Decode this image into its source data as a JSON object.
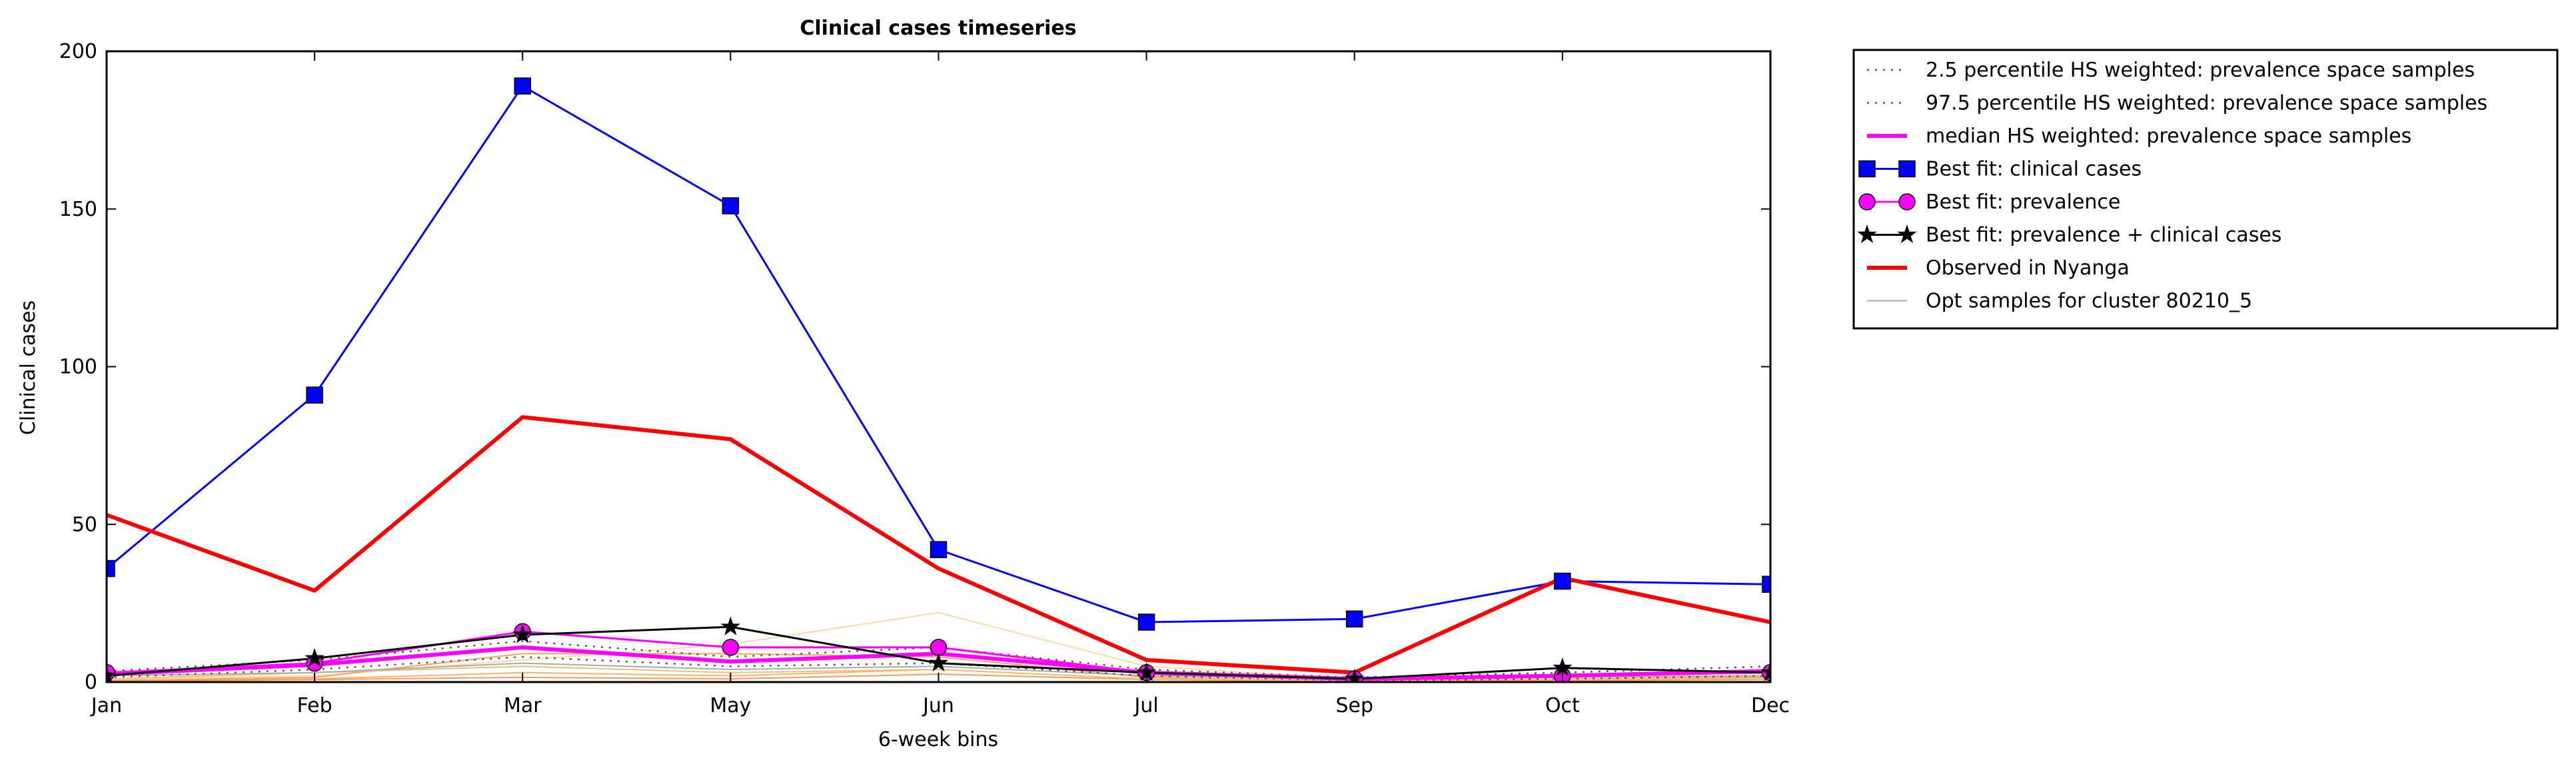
{
  "chart_data": {
    "type": "line",
    "title": "Clinical cases timeseries",
    "xlabel": "6-week bins",
    "ylabel": "Clinical cases",
    "categories": [
      "Jan",
      "Feb",
      "Mar",
      "May",
      "Jun",
      "Jul",
      "Sep",
      "Oct",
      "Dec"
    ],
    "yticks": [
      0,
      50,
      100,
      150,
      200
    ],
    "ylim": [
      0,
      200
    ],
    "grid": false,
    "legend_position": "outside-right-top",
    "series": [
      {
        "name": "2.5 percentile HS weighted: prevalence space samples",
        "style": "dotted",
        "color": "#555555",
        "marker": "none",
        "values": [
          1.5,
          4,
          8,
          5,
          6,
          2,
          0.5,
          1,
          2
        ]
      },
      {
        "name": "97.5 percentile HS weighted: prevalence space samples",
        "style": "dotted",
        "color": "#555555",
        "marker": "none",
        "values": [
          3.5,
          7,
          13,
          8,
          11,
          4,
          1.5,
          3,
          5
        ]
      },
      {
        "name": "median HS weighted: prevalence space samples",
        "style": "solid",
        "color": "#ff00ff",
        "marker": "none",
        "values": [
          2.5,
          5.5,
          11,
          6.5,
          9,
          3,
          1,
          2,
          3.5
        ]
      },
      {
        "name": "Best fit: clinical cases",
        "style": "solid",
        "color": "#0000ff",
        "marker": "square",
        "values": [
          36,
          91,
          189,
          151,
          42,
          19,
          20,
          32,
          31
        ]
      },
      {
        "name": "Best fit: prevalence",
        "style": "solid",
        "color": "#ff00ff",
        "marker": "circle",
        "values": [
          3,
          6,
          16,
          11,
          11,
          3,
          1,
          2,
          3
        ]
      },
      {
        "name": "Best fit: prevalence + clinical cases",
        "style": "solid",
        "color": "#000000",
        "marker": "star",
        "values": [
          2,
          7.5,
          15,
          17.5,
          6,
          3,
          1,
          4.5,
          3
        ]
      },
      {
        "name": "Observed in Nyanga",
        "style": "solid",
        "color": "#ff0000",
        "marker": "none",
        "values": [
          53,
          29,
          84,
          77,
          36,
          7,
          3,
          33,
          19
        ]
      },
      {
        "name": "Opt samples for cluster 80210_5",
        "style": "solid",
        "color": "#aaaaaa",
        "marker": "none",
        "values": [
          2,
          3,
          6,
          4,
          5,
          2,
          1,
          1.5,
          2
        ]
      }
    ],
    "sample_series": [
      {
        "color": "#ffd9a0",
        "values": [
          1,
          2,
          7,
          12,
          22,
          5,
          1,
          2,
          2
        ]
      },
      {
        "color": "#ffb070",
        "values": [
          0.5,
          1,
          3,
          2,
          4,
          1,
          0.3,
          0.5,
          1
        ]
      },
      {
        "color": "#ff9955",
        "values": [
          0.3,
          0.8,
          1.5,
          1,
          2.5,
          0.8,
          0.2,
          0.4,
          0.8
        ]
      },
      {
        "color": "#f4a460",
        "values": [
          0.5,
          1.5,
          9,
          9,
          8,
          1.5,
          0.3,
          1,
          1.5
        ]
      },
      {
        "color": "#e8c27a",
        "values": [
          1,
          3,
          5,
          3,
          4,
          1,
          0.5,
          1,
          1
        ]
      }
    ]
  }
}
